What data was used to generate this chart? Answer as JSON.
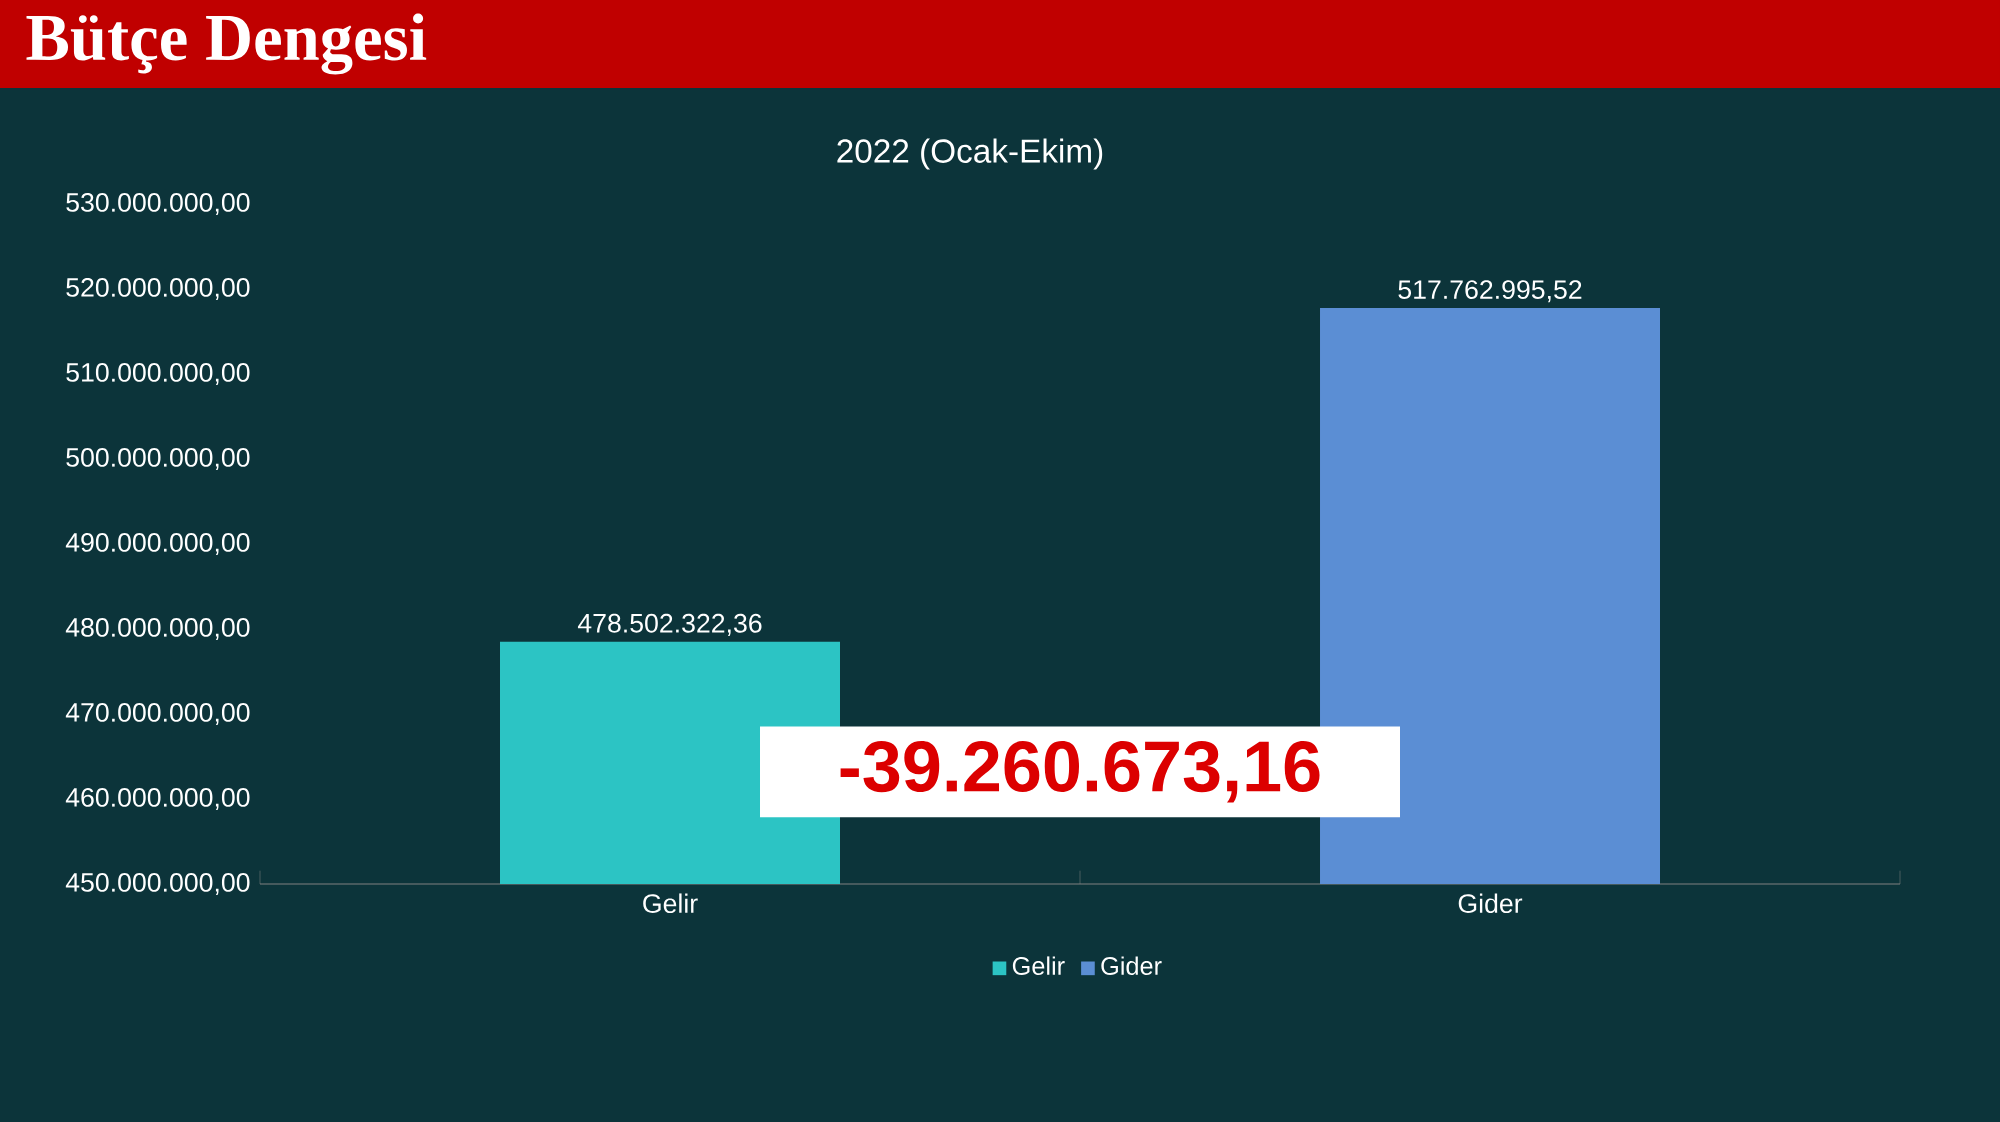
{
  "chart_data": {
    "type": "bar",
    "title": "Bütçe Dengesi",
    "subtitle": "2022 (Ocak-Ekim)",
    "categories": [
      "Gelir",
      "Gider"
    ],
    "series": [
      {
        "name": "Gelir",
        "color": "#2cc4c4",
        "values": [
          478502322.36,
          null
        ],
        "value_labels": [
          "478.502.322,36",
          null
        ]
      },
      {
        "name": "Gider",
        "color": "#5b8ed4",
        "values": [
          null,
          517762995.52
        ],
        "value_labels": [
          null,
          "517.762.995,52"
        ]
      }
    ],
    "ylim": [
      450000000,
      530000000
    ],
    "yticks": [
      {
        "value": 450000000,
        "label": "450.000.000,00"
      },
      {
        "value": 460000000,
        "label": "460.000.000,00"
      },
      {
        "value": 470000000,
        "label": "470.000.000,00"
      },
      {
        "value": 480000000,
        "label": "480.000.000,00"
      },
      {
        "value": 490000000,
        "label": "490.000.000,00"
      },
      {
        "value": 500000000,
        "label": "500.000.000,00"
      },
      {
        "value": 510000000,
        "label": "510.000.000,00"
      },
      {
        "value": 520000000,
        "label": "520.000.000,00"
      },
      {
        "value": 530000000,
        "label": "530.000.000,00"
      }
    ],
    "grid": false,
    "legend": "bottom",
    "annotations": [
      "-39.260.673,16"
    ]
  }
}
